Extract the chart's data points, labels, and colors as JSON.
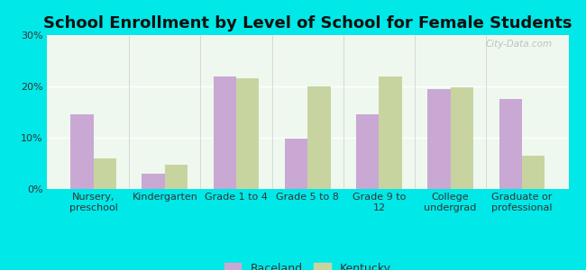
{
  "title": "School Enrollment by Level of School for Female Students",
  "categories": [
    "Nursery,\npreschool",
    "Kindergarten",
    "Grade 1 to 4",
    "Grade 5 to 8",
    "Grade 9 to\n12",
    "College\nundergrad",
    "Graduate or\nprofessional"
  ],
  "raceland": [
    14.5,
    3.0,
    22.0,
    9.8,
    14.5,
    19.5,
    17.5
  ],
  "kentucky": [
    6.0,
    4.8,
    21.5,
    20.0,
    22.0,
    19.8,
    6.5
  ],
  "raceland_color": "#c9a8d4",
  "kentucky_color": "#c8d4a0",
  "background_outer": "#00e8e8",
  "background_inner_top": "#f5fff5",
  "background_inner_bottom": "#e8f5e8",
  "ylim": [
    0,
    30
  ],
  "yticks": [
    0,
    10,
    20,
    30
  ],
  "ytick_labels": [
    "0%",
    "10%",
    "20%",
    "30%"
  ],
  "bar_width": 0.32,
  "legend_raceland": "Raceland",
  "legend_kentucky": "Kentucky",
  "title_fontsize": 13,
  "tick_fontsize": 8,
  "legend_fontsize": 9,
  "watermark": "City-Data.com"
}
